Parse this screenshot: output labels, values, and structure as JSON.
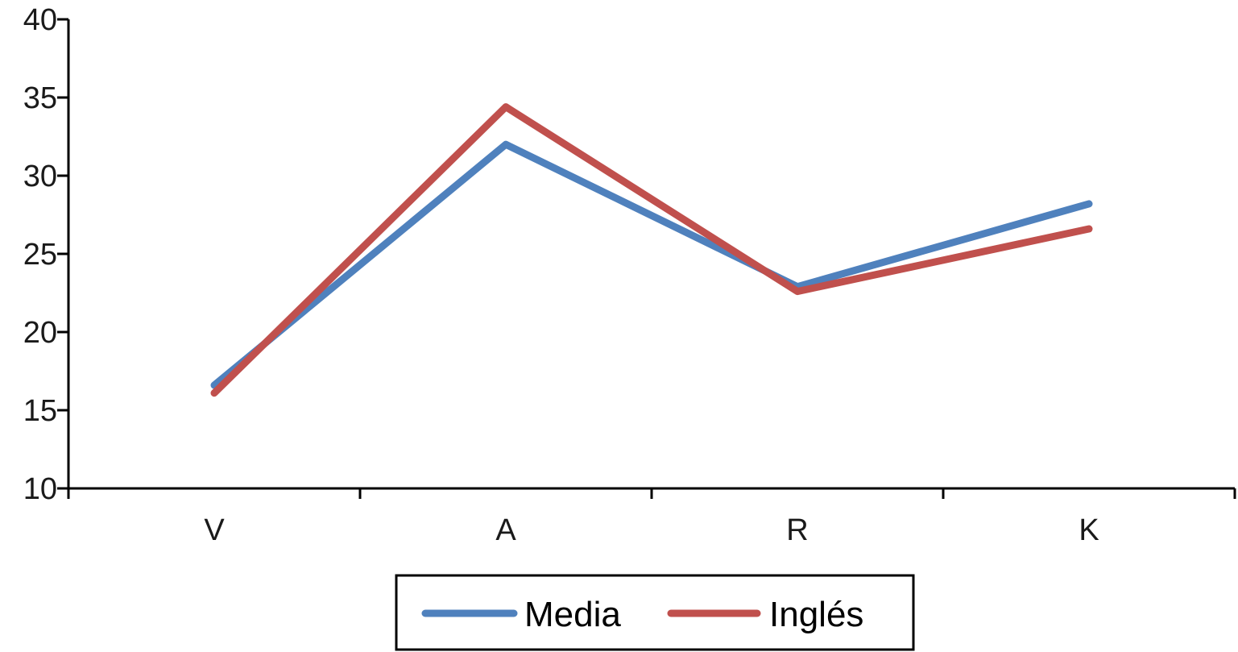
{
  "chart_data": {
    "type": "line",
    "categories": [
      "V",
      "A",
      "R",
      "K"
    ],
    "series": [
      {
        "name": "Media",
        "values": [
          16.6,
          32.0,
          22.9,
          28.2
        ],
        "color": "#4f81bd"
      },
      {
        "name": "Inglés",
        "values": [
          16.1,
          34.4,
          22.6,
          26.6
        ],
        "color": "#c0504d"
      }
    ],
    "y_ticks": [
      "10",
      "15",
      "20",
      "25",
      "30",
      "35",
      "40"
    ],
    "ylim": [
      10,
      40
    ],
    "title": "",
    "xlabel": "",
    "ylabel": "",
    "grid": false,
    "legend_position": "bottom"
  }
}
